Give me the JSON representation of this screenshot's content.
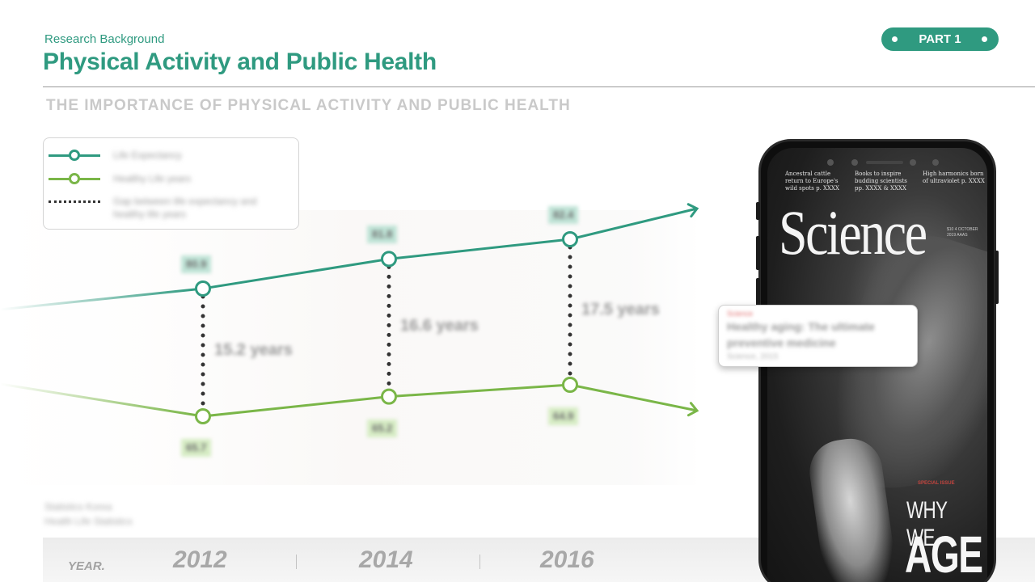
{
  "header": {
    "subtitle": "Research Background",
    "title": "Physical Activity and Public Health",
    "part_label": "PART 1"
  },
  "section_heading": "THE IMPORTANCE OF PHYSICAL ACTIVITY AND PUBLIC HEALTH",
  "legend": {
    "items": [
      {
        "label": "Life Expectancy",
        "style": "line-circle",
        "color": "#2f9a80"
      },
      {
        "label": "Healthy Life years",
        "style": "line-circle",
        "color": "#7ab648"
      },
      {
        "label": "Gap between life expectancy and healthy life years",
        "style": "dotted",
        "color": "#333333"
      }
    ]
  },
  "chart_data": {
    "type": "line",
    "categories": [
      "2012",
      "2014",
      "2016"
    ],
    "series": [
      {
        "name": "Life Expectancy",
        "values": [
          80.9,
          81.8,
          82.4
        ],
        "labels": [
          "80.9",
          "81.8",
          "82.4"
        ],
        "color": "#2f9a80"
      },
      {
        "name": "Healthy Life years",
        "values": [
          65.7,
          65.2,
          64.9
        ],
        "labels": [
          "65.7",
          "65.2",
          "64.9"
        ],
        "color": "#7ab648"
      }
    ],
    "gap_labels": [
      "15.2 years",
      "16.6 years",
      "17.5 years"
    ],
    "xlabel": "YEAR.",
    "ylim": [
      60,
      86
    ],
    "grid": false,
    "legend_position": "top-left"
  },
  "note": {
    "line1": "Statistics Korea",
    "line2": "Health Life Statistics"
  },
  "phone": {
    "headlines": [
      "Ancestral cattle return to Europe's wild spots p. XXXX",
      "Books to inspire budding scientists pp. XXXX & XXXX",
      "High harmonics born of ultraviolet p. XXXX"
    ],
    "masthead": "Science",
    "issue_info": "$10 4 OCTOBER 2019 AAAS",
    "special_issue": "SPECIAL ISSUE",
    "cover_line1": "WHY WE",
    "cover_line2": "AGE"
  },
  "callout": {
    "tag": "Science",
    "line1": "Healthy aging: The ultimate",
    "line2": "preventive medicine",
    "line3": "Science, 2015"
  }
}
